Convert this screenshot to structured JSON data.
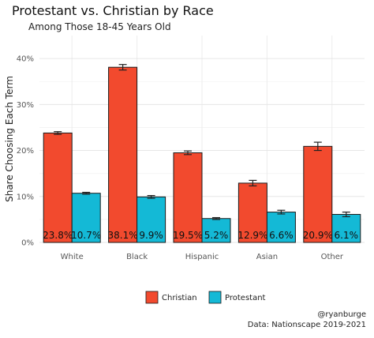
{
  "chart_data": {
    "type": "bar",
    "title": "Protestant vs. Christian by Race",
    "subtitle": "Among Those 18-45 Years Old",
    "ylabel": "Share Choosing Each Term",
    "xlabel": "",
    "categories": [
      "White",
      "Black",
      "Hispanic",
      "Asian",
      "Other"
    ],
    "ylim": [
      0,
      45
    ],
    "yticks": [
      0,
      10,
      20,
      30,
      40
    ],
    "ytick_labels": [
      "0%",
      "10%",
      "20%",
      "30%",
      "40%"
    ],
    "grid": true,
    "legend_position": "bottom",
    "series": [
      {
        "name": "Christian",
        "color": "#F24A2E",
        "values": [
          23.8,
          38.1,
          19.5,
          12.9,
          20.9
        ],
        "labels": [
          "23.8%",
          "38.1%",
          "19.5%",
          "12.9%",
          "20.9%"
        ],
        "error": [
          0.3,
          0.6,
          0.4,
          0.6,
          0.9
        ]
      },
      {
        "name": "Protestant",
        "color": "#14B9D6",
        "values": [
          10.7,
          9.9,
          5.2,
          6.6,
          6.1
        ],
        "labels": [
          "10.7%",
          "9.9%",
          "5.2%",
          "6.6%",
          "6.1%"
        ],
        "error": [
          0.2,
          0.3,
          0.2,
          0.4,
          0.5
        ]
      }
    ]
  },
  "footer": {
    "handle": "@ryanburge",
    "source": "Data: Nationscape 2019-2021"
  }
}
